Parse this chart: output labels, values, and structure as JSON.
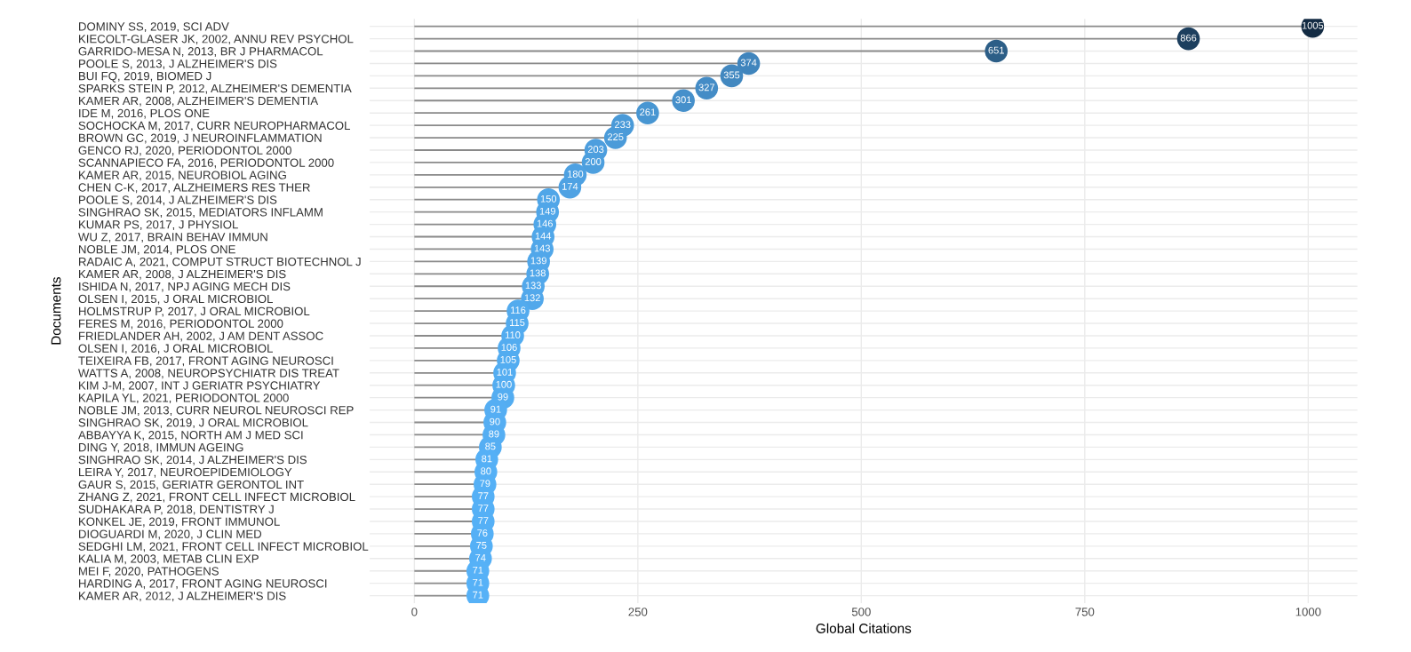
{
  "chart_data": {
    "type": "lollipop",
    "orientation": "horizontal",
    "xlabel": "Global Citations",
    "ylabel": "Documents",
    "categories": [
      "DOMINY SS, 2019, SCI ADV",
      "KIECOLT-GLASER JK, 2002, ANNU REV PSYCHOL",
      "GARRIDO-MESA N, 2013, BR J PHARMACOL",
      "POOLE S, 2013, J ALZHEIMER'S DIS",
      "BUI FQ, 2019, BIOMED J",
      "SPARKS STEIN P, 2012, ALZHEIMER'S DEMENTIA",
      "KAMER AR, 2008, ALZHEIMER'S DEMENTIA",
      "IDE M, 2016, PLOS ONE",
      "SOCHOCKA M, 2017, CURR NEUROPHARMACOL",
      "BROWN GC, 2019, J NEUROINFLAMMATION",
      "GENCO RJ, 2020, PERIODONTOL 2000",
      "SCANNAPIECO FA, 2016, PERIODONTOL 2000",
      "KAMER AR, 2015, NEUROBIOL AGING",
      "CHEN C-K, 2017, ALZHEIMERS RES THER",
      "POOLE S, 2014, J ALZHEIMER'S DIS",
      "SINGHRAO SK, 2015, MEDIATORS INFLAMM",
      "KUMAR PS, 2017, J PHYSIOL",
      "WU Z, 2017, BRAIN BEHAV IMMUN",
      "NOBLE JM, 2014, PLOS ONE",
      "RADAIC A, 2021, COMPUT STRUCT BIOTECHNOL J",
      "KAMER AR, 2008, J ALZHEIMER'S DIS",
      "ISHIDA N, 2017, NPJ AGING MECH DIS",
      "OLSEN I, 2015, J ORAL MICROBIOL",
      "HOLMSTRUP P, 2017, J ORAL MICROBIOL",
      "FERES M, 2016, PERIODONTOL 2000",
      "FRIEDLANDER AH, 2002, J AM DENT ASSOC",
      "OLSEN I, 2016, J ORAL MICROBIOL",
      "TEIXEIRA FB, 2017, FRONT AGING NEUROSCI",
      "WATTS A, 2008, NEUROPSYCHIATR DIS TREAT",
      "KIM J-M, 2007, INT J GERIATR PSYCHIATRY",
      "KAPILA YL, 2021, PERIODONTOL 2000",
      "NOBLE JM, 2013, CURR NEUROL NEUROSCI REP",
      "SINGHRAO SK, 2019, J ORAL MICROBIOL",
      "ABBAYYA K, 2015, NORTH AM J MED SCI",
      "DING Y, 2018, IMMUN AGEING",
      "SINGHRAO SK, 2014, J ALZHEIMER'S DIS",
      "LEIRA Y, 2017, NEUROEPIDEMIOLOGY",
      "GAUR S, 2015, GERIATR GERONTOL INT",
      "ZHANG Z, 2021, FRONT CELL INFECT MICROBIOL",
      "SUDHAKARA P, 2018, DENTISTRY J",
      "KONKEL JE, 2019, FRONT IMMUNOL",
      "DIOGUARDI M, 2020, J CLIN MED",
      "SEDGHI LM, 2021, FRONT CELL INFECT MICROBIOL",
      "KALIA M, 2003, METAB CLIN EXP",
      "MEI F, 2020, PATHOGENS",
      "HARDING A, 2017, FRONT AGING NEUROSCI",
      "KAMER AR, 2012, J ALZHEIMER'S DIS"
    ],
    "values": [
      1005,
      866,
      651,
      374,
      355,
      327,
      301,
      261,
      233,
      225,
      203,
      200,
      180,
      174,
      150,
      149,
      146,
      144,
      143,
      139,
      138,
      133,
      132,
      116,
      115,
      110,
      106,
      105,
      101,
      100,
      99,
      91,
      90,
      89,
      85,
      81,
      80,
      79,
      77,
      77,
      77,
      76,
      75,
      74,
      71,
      71,
      71
    ],
    "colors": [
      "#132B43",
      "#1D3F5E",
      "#2C5E87",
      "#4085BD",
      "#4288C0",
      "#448CC6",
      "#4690CB",
      "#4896D2",
      "#4A9AD8",
      "#4B9BD9",
      "#4D9EDE",
      "#4D9FDE",
      "#4EA1E2",
      "#4FA2E3",
      "#50A6E8",
      "#50A6E8",
      "#51A7E9",
      "#51A7E9",
      "#51A7E9",
      "#51A7EA",
      "#51A7EA",
      "#52A8EB",
      "#52A8EB",
      "#53ABEE",
      "#53ABEE",
      "#53ACF0",
      "#53ACF0",
      "#53ACF0",
      "#54ADF1",
      "#54ADF1",
      "#54ADF1",
      "#55AEF3",
      "#55AEF3",
      "#55AEF3",
      "#55AEF3",
      "#55B0F6",
      "#55B0F6",
      "#55B0F6",
      "#55B0F6",
      "#55B0F6",
      "#55B0F6",
      "#55B0F6",
      "#55B0F6",
      "#55B0F6",
      "#56B1F7",
      "#56B1F7",
      "#56B1F7"
    ],
    "xlim": [
      -50,
      1055
    ],
    "xticks": [
      0,
      250,
      500,
      750,
      1000
    ],
    "grid": true,
    "data_labels": true,
    "marker": "circle"
  }
}
